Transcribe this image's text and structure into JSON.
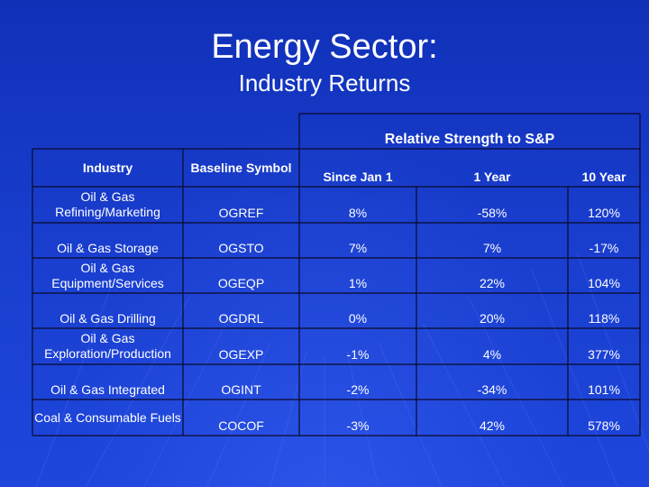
{
  "slide": {
    "title": "Energy Sector:",
    "subtitle": "Industry Returns"
  },
  "table": {
    "group_header": "Relative Strength to S&P",
    "columns": {
      "industry": "Industry",
      "symbol": "Baseline Symbol",
      "since_jan1": "Since Jan 1",
      "one_year": "1 Year",
      "ten_year": "10 Year"
    },
    "rows": [
      {
        "industry": "Oil & Gas Refining/Marketing",
        "symbol": "OGREF",
        "since_jan1": "8%",
        "one_year": "-58%",
        "ten_year": "120%"
      },
      {
        "industry": "Oil & Gas Storage",
        "symbol": "OGSTO",
        "since_jan1": "7%",
        "one_year": "7%",
        "ten_year": "-17%"
      },
      {
        "industry": "Oil & Gas Equipment/Services",
        "symbol": "OGEQP",
        "since_jan1": "1%",
        "one_year": "22%",
        "ten_year": "104%"
      },
      {
        "industry": "Oil & Gas Drilling",
        "symbol": "OGDRL",
        "since_jan1": "0%",
        "one_year": "20%",
        "ten_year": "118%"
      },
      {
        "industry": "Oil & Gas Exploration/Production",
        "symbol": "OGEXP",
        "since_jan1": "-1%",
        "one_year": "4%",
        "ten_year": "377%"
      },
      {
        "industry": "Oil & Gas Integrated",
        "symbol": "OGINT",
        "since_jan1": "-2%",
        "one_year": "-34%",
        "ten_year": "101%"
      },
      {
        "industry": "Coal & Consumable Fuels",
        "symbol": "COCOF",
        "since_jan1": "-3%",
        "one_year": "42%",
        "ten_year": "578%"
      }
    ]
  },
  "colors": {
    "background": "#1a3fd0",
    "grid_line": "#0a0a2a",
    "text": "#ffffff"
  }
}
